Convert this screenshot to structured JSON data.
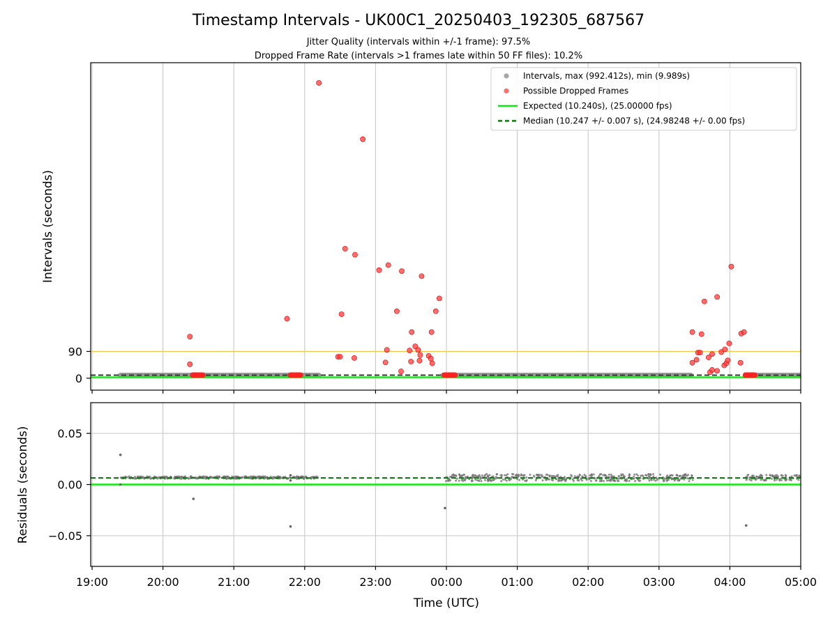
{
  "chart_data": {
    "title": "Timestamp Intervals - UK00C1_20250403_192305_687567",
    "subtitle_1": "Jitter Quality (intervals within +/-1 frame): 97.5%",
    "subtitle_2": "Dropped Frame Rate (intervals >1 frames late within 50 FF files): 10.2%",
    "xlabel": "Time (UTC)",
    "x_ticks": [
      "19:00",
      "20:00",
      "21:00",
      "22:00",
      "23:00",
      "00:00",
      "01:00",
      "02:00",
      "03:00",
      "04:00",
      "05:00"
    ],
    "panels": [
      {
        "type": "scatter",
        "ylabel": "Intervals (seconds)",
        "y_ticks": [
          0,
          90
        ],
        "ylim": [
          -40,
          1060
        ],
        "xlim": [
          18.98,
          29.0
        ],
        "grid": "x",
        "threshold_line": {
          "value": 90,
          "color": "#f5c542"
        },
        "legend_position": "top-right",
        "legend": [
          {
            "label": "Intervals, max (992.412s), min (9.989s)",
            "color": "#888888",
            "kind": "dot"
          },
          {
            "label": "Possible Dropped Frames",
            "color": "#ff3b3b",
            "kind": "dot"
          },
          {
            "label": "Expected (10.240s), (25.00000 fps)",
            "color": "#11e811",
            "kind": "line"
          },
          {
            "label": "Median (10.247 +/- 0.007 s), (24.98248 +/- 0.00 fps)",
            "color": "#0a7a0a",
            "kind": "dashed"
          }
        ],
        "expected_value": 10.24,
        "median_value": 10.247,
        "normal_interval_segments": [
          [
            19.4,
            22.2
          ],
          [
            23.95,
            27.45
          ],
          [
            28.22,
            29.0
          ]
        ],
        "dropped_frame_clusters": [
          [
            20.42,
            20.56
          ],
          [
            21.8,
            21.94
          ],
          [
            23.97,
            24.12
          ],
          [
            28.22,
            28.35
          ]
        ],
        "dropped_frames": [
          {
            "x": 20.38,
            "y": 140
          },
          {
            "x": 20.38,
            "y": 47
          },
          {
            "x": 21.75,
            "y": 200
          },
          {
            "x": 22.2,
            "y": 992
          },
          {
            "x": 22.47,
            "y": 72
          },
          {
            "x": 22.5,
            "y": 72
          },
          {
            "x": 22.52,
            "y": 215
          },
          {
            "x": 22.57,
            "y": 435
          },
          {
            "x": 22.7,
            "y": 68
          },
          {
            "x": 22.71,
            "y": 415
          },
          {
            "x": 22.82,
            "y": 803
          },
          {
            "x": 23.05,
            "y": 363
          },
          {
            "x": 23.14,
            "y": 53
          },
          {
            "x": 23.16,
            "y": 95
          },
          {
            "x": 23.18,
            "y": 380
          },
          {
            "x": 23.3,
            "y": 225
          },
          {
            "x": 23.36,
            "y": 23
          },
          {
            "x": 23.37,
            "y": 360
          },
          {
            "x": 23.48,
            "y": 93
          },
          {
            "x": 23.5,
            "y": 56
          },
          {
            "x": 23.51,
            "y": 155
          },
          {
            "x": 23.56,
            "y": 107
          },
          {
            "x": 23.6,
            "y": 95
          },
          {
            "x": 23.62,
            "y": 59
          },
          {
            "x": 23.63,
            "y": 78
          },
          {
            "x": 23.65,
            "y": 343
          },
          {
            "x": 23.75,
            "y": 75
          },
          {
            "x": 23.78,
            "y": 66
          },
          {
            "x": 23.79,
            "y": 155
          },
          {
            "x": 23.8,
            "y": 50
          },
          {
            "x": 23.85,
            "y": 225
          },
          {
            "x": 23.9,
            "y": 268
          },
          {
            "x": 27.47,
            "y": 155
          },
          {
            "x": 27.47,
            "y": 52
          },
          {
            "x": 27.53,
            "y": 62
          },
          {
            "x": 27.55,
            "y": 86
          },
          {
            "x": 27.58,
            "y": 86
          },
          {
            "x": 27.6,
            "y": 148
          },
          {
            "x": 27.64,
            "y": 258
          },
          {
            "x": 27.7,
            "y": 70
          },
          {
            "x": 27.72,
            "y": 20
          },
          {
            "x": 27.75,
            "y": 28
          },
          {
            "x": 27.75,
            "y": 81
          },
          {
            "x": 27.82,
            "y": 25
          },
          {
            "x": 27.82,
            "y": 273
          },
          {
            "x": 27.88,
            "y": 88
          },
          {
            "x": 27.92,
            "y": 43
          },
          {
            "x": 27.93,
            "y": 97
          },
          {
            "x": 27.95,
            "y": 50
          },
          {
            "x": 27.97,
            "y": 60
          },
          {
            "x": 27.99,
            "y": 117
          },
          {
            "x": 28.02,
            "y": 375
          },
          {
            "x": 28.15,
            "y": 52
          },
          {
            "x": 28.16,
            "y": 150
          },
          {
            "x": 28.2,
            "y": 155
          }
        ]
      },
      {
        "type": "scatter",
        "ylabel": "Residuals (seconds)",
        "y_ticks": [
          "0.05",
          "0.00",
          "−0.05"
        ],
        "y_tick_values": [
          0.05,
          0.0,
          -0.05
        ],
        "ylim": [
          -0.08,
          0.08
        ],
        "xlim": [
          18.98,
          29.0
        ],
        "grid": "both",
        "expected_value": 0.0,
        "median_value": 0.0065,
        "residual_bands": [
          {
            "x_range": [
              19.4,
              22.2
            ],
            "center": 0.0068,
            "spread": 0.0012
          },
          {
            "x_range": [
              23.98,
              27.48
            ],
            "center": 0.0068,
            "spread": 0.0035
          },
          {
            "x_range": [
              28.22,
              29.0
            ],
            "center": 0.0068,
            "spread": 0.0028
          }
        ],
        "outliers": [
          {
            "x": 19.4,
            "y": 0.029
          },
          {
            "x": 19.4,
            "y": 0.0
          },
          {
            "x": 20.43,
            "y": -0.014
          },
          {
            "x": 21.8,
            "y": 0.009
          },
          {
            "x": 21.8,
            "y": 0.004
          },
          {
            "x": 21.8,
            "y": -0.041
          },
          {
            "x": 23.98,
            "y": -0.023
          },
          {
            "x": 28.23,
            "y": -0.04
          }
        ]
      }
    ]
  }
}
